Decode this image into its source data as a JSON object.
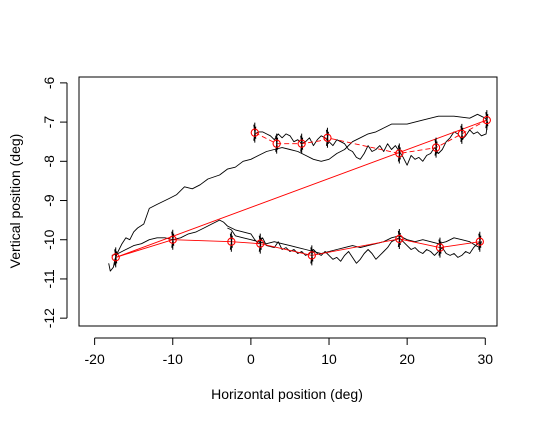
{
  "chart_data": {
    "type": "line",
    "title": "",
    "xlabel": "Horizontal position (deg)",
    "ylabel": "Vertical position (deg)",
    "xlim": [
      -22,
      31.5
    ],
    "ylim": [
      -12.2,
      -5.85
    ],
    "xticks": [
      -20,
      -10,
      0,
      10,
      20,
      30
    ],
    "yticks": [
      -12,
      -11,
      -10,
      -9,
      -8,
      -7,
      -6
    ],
    "grid": false,
    "legend": "none",
    "series": [
      {
        "color": "#000000",
        "style": "solid",
        "points": [
          [
            -18.2,
            -10.6
          ],
          [
            -18,
            -10.8
          ],
          [
            -17.6,
            -10.7
          ],
          [
            -17.4,
            -10.5
          ],
          [
            -17,
            -10.3
          ],
          [
            -16.5,
            -10.1
          ],
          [
            -16,
            -9.95
          ],
          [
            -15.5,
            -10.0
          ],
          [
            -15,
            -9.8
          ],
          [
            -14.5,
            -9.7
          ],
          [
            -13.7,
            -9.6
          ],
          [
            -13,
            -9.2
          ],
          [
            -12,
            -9.1
          ],
          [
            -10.5,
            -8.95
          ],
          [
            -9.5,
            -8.85
          ],
          [
            -8.5,
            -8.65
          ],
          [
            -7.5,
            -8.7
          ],
          [
            -6.5,
            -8.6
          ],
          [
            -5.5,
            -8.45
          ],
          [
            -4,
            -8.35
          ],
          [
            -3,
            -8.2
          ],
          [
            -2,
            -8.15
          ],
          [
            -1,
            -8.0
          ],
          [
            0,
            -7.95
          ],
          [
            1,
            -7.85
          ],
          [
            2,
            -7.75
          ],
          [
            3,
            -7.7
          ],
          [
            4,
            -7.65
          ],
          [
            5,
            -7.7
          ],
          [
            6,
            -7.75
          ],
          [
            7,
            -7.85
          ],
          [
            8,
            -7.95
          ],
          [
            9,
            -8.0
          ],
          [
            10,
            -7.95
          ],
          [
            11,
            -7.8
          ],
          [
            12,
            -7.7
          ],
          [
            13,
            -7.5
          ],
          [
            14,
            -7.4
          ],
          [
            15,
            -7.3
          ],
          [
            16,
            -7.25
          ],
          [
            17,
            -7.15
          ],
          [
            18,
            -7.05
          ],
          [
            20,
            -7.05
          ],
          [
            22,
            -6.95
          ],
          [
            24,
            -6.85
          ],
          [
            26,
            -6.85
          ],
          [
            28,
            -6.9
          ],
          [
            29,
            -6.8
          ],
          [
            30,
            -6.9
          ],
          [
            30.3,
            -7.0
          ],
          [
            30.1,
            -7.3
          ],
          [
            29.5,
            -7.35
          ],
          [
            29,
            -7.25
          ],
          [
            28.5,
            -7.3
          ],
          [
            28,
            -7.2
          ],
          [
            27.5,
            -7.35
          ],
          [
            27,
            -7.45
          ],
          [
            26.5,
            -7.3
          ],
          [
            26,
            -7.25
          ],
          [
            25.5,
            -7.4
          ],
          [
            25,
            -7.5
          ],
          [
            24.5,
            -7.7
          ],
          [
            24,
            -7.8
          ],
          [
            23.5,
            -7.65
          ],
          [
            23,
            -7.8
          ],
          [
            22.5,
            -7.85
          ],
          [
            22,
            -8.0
          ],
          [
            21.5,
            -7.9
          ],
          [
            21,
            -7.95
          ],
          [
            20.5,
            -7.85
          ],
          [
            20,
            -8.1
          ],
          [
            19.5,
            -7.9
          ],
          [
            19,
            -7.75
          ],
          [
            18.5,
            -7.6
          ],
          [
            18,
            -7.7
          ],
          [
            17.5,
            -7.55
          ],
          [
            17,
            -7.75
          ],
          [
            16.5,
            -7.6
          ],
          [
            16,
            -7.7
          ],
          [
            15.5,
            -7.75
          ],
          [
            15,
            -7.6
          ],
          [
            14.5,
            -7.8
          ],
          [
            14,
            -7.95
          ],
          [
            13.5,
            -7.9
          ],
          [
            13,
            -7.75
          ],
          [
            12.5,
            -7.7
          ],
          [
            12,
            -7.55
          ],
          [
            11.5,
            -7.5
          ],
          [
            11,
            -7.45
          ],
          [
            10.5,
            -7.6
          ],
          [
            10,
            -7.5
          ],
          [
            9.5,
            -7.4
          ],
          [
            9,
            -7.35
          ],
          [
            8.5,
            -7.45
          ],
          [
            8,
            -7.6
          ],
          [
            7.5,
            -7.4
          ],
          [
            7,
            -7.5
          ],
          [
            6.5,
            -7.55
          ],
          [
            6,
            -7.45
          ],
          [
            5.5,
            -7.5
          ],
          [
            5,
            -7.35
          ],
          [
            4.5,
            -7.3
          ],
          [
            4,
            -7.4
          ],
          [
            3.5,
            -7.3
          ],
          [
            3,
            -7.45
          ],
          [
            2.5,
            -7.35
          ],
          [
            2,
            -7.3
          ],
          [
            1.5,
            -7.25
          ],
          [
            1,
            -7.25
          ],
          [
            0.5,
            -7.3
          ]
        ]
      },
      {
        "color": "#000000",
        "style": "solid",
        "points": [
          [
            -17.8,
            -10.4
          ],
          [
            -17,
            -10.35
          ],
          [
            -16,
            -10.25
          ],
          [
            -15,
            -10.15
          ],
          [
            -14,
            -10.1
          ],
          [
            -13,
            -10.0
          ],
          [
            -12,
            -9.95
          ],
          [
            -11,
            -9.95
          ],
          [
            -10,
            -10.0
          ],
          [
            -9,
            -9.95
          ],
          [
            -8,
            -9.85
          ],
          [
            -7,
            -9.8
          ],
          [
            -6,
            -9.7
          ],
          [
            -5,
            -9.6
          ],
          [
            -4,
            -9.5
          ],
          [
            -3.5,
            -9.55
          ],
          [
            -3,
            -9.65
          ],
          [
            -2,
            -9.75
          ],
          [
            -1,
            -9.8
          ],
          [
            0,
            -9.85
          ],
          [
            0.5,
            -10.0
          ],
          [
            1,
            -10.1
          ],
          [
            1.5,
            -9.95
          ],
          [
            2,
            -10.15
          ],
          [
            3,
            -10.2
          ],
          [
            3.5,
            -10.05
          ],
          [
            4,
            -10.25
          ],
          [
            4.5,
            -10.2
          ],
          [
            5,
            -10.3
          ],
          [
            5.5,
            -10.25
          ],
          [
            6,
            -10.35
          ],
          [
            6.5,
            -10.3
          ],
          [
            7,
            -10.4
          ],
          [
            7.5,
            -10.35
          ],
          [
            8,
            -10.25
          ],
          [
            8.5,
            -10.35
          ],
          [
            9,
            -10.4
          ],
          [
            9.5,
            -10.3
          ],
          [
            10,
            -10.4
          ],
          [
            10.5,
            -10.5
          ],
          [
            11,
            -10.45
          ],
          [
            11.5,
            -10.55
          ],
          [
            12,
            -10.4
          ],
          [
            12.5,
            -10.3
          ],
          [
            13,
            -10.45
          ],
          [
            13.5,
            -10.6
          ],
          [
            14,
            -10.5
          ],
          [
            14.5,
            -10.35
          ],
          [
            15,
            -10.25
          ],
          [
            15.5,
            -10.35
          ],
          [
            16,
            -10.5
          ],
          [
            16.5,
            -10.4
          ],
          [
            17,
            -10.3
          ],
          [
            17.5,
            -10.2
          ],
          [
            18,
            -10.05
          ],
          [
            18.5,
            -10.0
          ],
          [
            19,
            -9.95
          ],
          [
            19.5,
            -10.05
          ],
          [
            20,
            -10.15
          ],
          [
            20.5,
            -10.25
          ],
          [
            21,
            -10.2
          ],
          [
            21.5,
            -10.3
          ],
          [
            22,
            -10.35
          ],
          [
            22.5,
            -10.25
          ],
          [
            23,
            -10.3
          ],
          [
            23.5,
            -10.4
          ],
          [
            24,
            -10.3
          ],
          [
            24.5,
            -10.2
          ],
          [
            25,
            -10.35
          ],
          [
            25.5,
            -10.4
          ],
          [
            26,
            -10.35
          ],
          [
            26.5,
            -10.45
          ],
          [
            27,
            -10.4
          ],
          [
            27.5,
            -10.3
          ],
          [
            28,
            -10.35
          ],
          [
            28.5,
            -10.2
          ],
          [
            29,
            -10.1
          ],
          [
            29.5,
            -10.05
          ],
          [
            29.3,
            -10.2
          ],
          [
            28.8,
            -10.15
          ],
          [
            28,
            -10.05
          ],
          [
            27,
            -10.0
          ],
          [
            26,
            -9.95
          ],
          [
            25,
            -10.05
          ],
          [
            24,
            -10.1
          ],
          [
            23,
            -10.05
          ],
          [
            22,
            -10.0
          ],
          [
            21,
            -10.05
          ],
          [
            20,
            -10.0
          ],
          [
            19,
            -9.9
          ],
          [
            18,
            -9.95
          ],
          [
            17,
            -10.05
          ],
          [
            16,
            -10.1
          ],
          [
            15,
            -10.15
          ],
          [
            14,
            -10.2
          ],
          [
            13,
            -10.15
          ],
          [
            12,
            -10.2
          ],
          [
            11,
            -10.25
          ],
          [
            10,
            -10.3
          ],
          [
            9,
            -10.35
          ],
          [
            8,
            -10.3
          ],
          [
            7,
            -10.25
          ],
          [
            6,
            -10.2
          ],
          [
            5,
            -10.15
          ],
          [
            4,
            -10.1
          ],
          [
            3,
            -10.05
          ],
          [
            2,
            -10.1
          ],
          [
            1,
            -10.05
          ],
          [
            0,
            -10.0
          ],
          [
            -1,
            -9.95
          ],
          [
            -2,
            -9.9
          ],
          [
            -2.5,
            -9.75
          ],
          [
            -3,
            -9.7
          ]
        ]
      },
      {
        "color": "#ff0000",
        "style": "solid",
        "points": [
          [
            -17.3,
            -10.45
          ],
          [
            30.2,
            -6.95
          ]
        ]
      },
      {
        "color": "#ff0000",
        "style": "solid",
        "points": [
          [
            -17.3,
            -10.45
          ],
          [
            -10,
            -10.0
          ],
          [
            -2.5,
            -10.05
          ],
          [
            1.2,
            -10.1
          ],
          [
            7.8,
            -10.4
          ],
          [
            19,
            -9.98
          ],
          [
            24.2,
            -10.2
          ],
          [
            29.3,
            -10.05
          ]
        ]
      },
      {
        "color": "#ff0000",
        "style": "dashed",
        "points": [
          [
            0.5,
            -7.27
          ],
          [
            3.3,
            -7.55
          ],
          [
            6.5,
            -7.55
          ],
          [
            8.8,
            -7.48
          ],
          [
            9.8,
            -7.4
          ],
          [
            19,
            -7.8
          ],
          [
            23.7,
            -7.65
          ],
          [
            27,
            -7.3
          ],
          [
            30.2,
            -6.95
          ]
        ]
      }
    ],
    "fixation_points": [
      [
        -17.3,
        -10.45
      ],
      [
        -10,
        -10.0
      ],
      [
        -2.5,
        -10.05
      ],
      [
        1.2,
        -10.1
      ],
      [
        7.8,
        -10.4
      ],
      [
        19,
        -9.98
      ],
      [
        24.2,
        -10.2
      ],
      [
        29.3,
        -10.05
      ],
      [
        0.5,
        -7.27
      ],
      [
        3.3,
        -7.55
      ],
      [
        6.5,
        -7.55
      ],
      [
        9.8,
        -7.4
      ],
      [
        19,
        -7.8
      ],
      [
        23.7,
        -7.65
      ],
      [
        27,
        -7.3
      ],
      [
        30.2,
        -6.95
      ]
    ]
  }
}
